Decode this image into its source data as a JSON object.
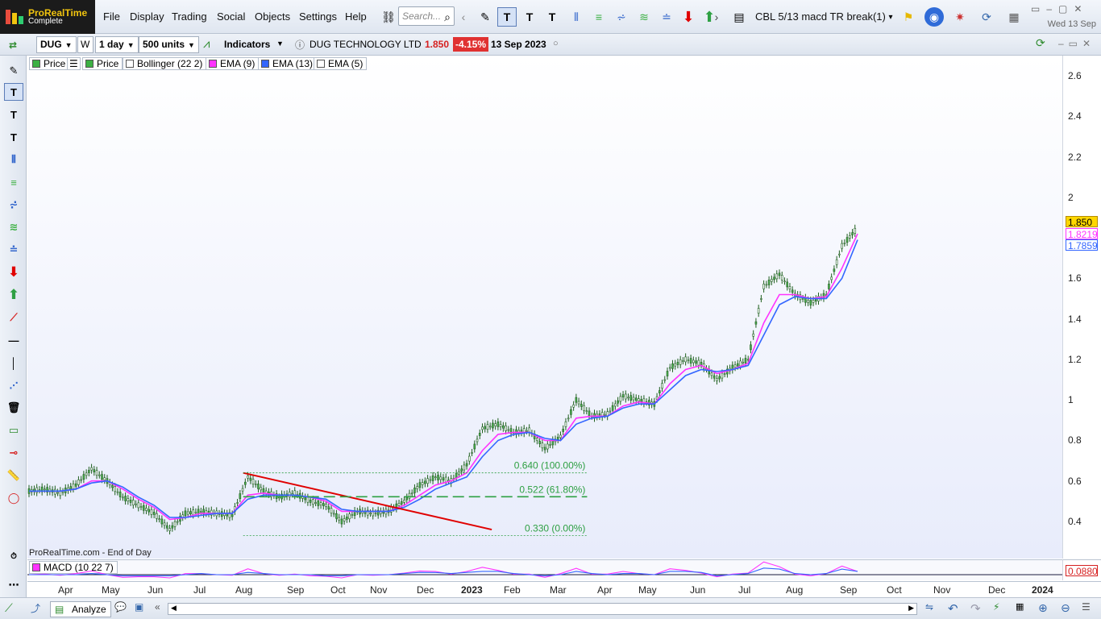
{
  "app": {
    "brand": "ProRealTime",
    "edition": "Complete",
    "date": "Wed 13 Sep"
  },
  "menu": [
    "File",
    "Display",
    "Trading",
    "Social",
    "Objects",
    "Settings",
    "Help"
  ],
  "search": {
    "placeholder": "Search..."
  },
  "screener": {
    "label": "CBL 5/13 macd TR break(1)"
  },
  "toolbar": {
    "ticker": "DUG",
    "w_label": "W",
    "period": "1 day",
    "units": "500 units",
    "indicators": "Indicators",
    "instrument": "DUG TECHNOLOGY LTD",
    "last_price": "1.850",
    "change": "-4.15%",
    "date": "13 Sep 2023"
  },
  "legend": [
    {
      "label": "Price",
      "color": "#3cb043"
    },
    {
      "label": "Price",
      "color": "#3cb043"
    },
    {
      "label": "Bollinger (22 2)",
      "color": "#ffffff"
    },
    {
      "label": "EMA (9)",
      "color": "#ff33ff"
    },
    {
      "label": "EMA (13)",
      "color": "#3366ff"
    },
    {
      "label": "EMA (5)",
      "color": "#ffffff"
    }
  ],
  "chart_data": {
    "type": "line",
    "y_axis_ticks": [
      "2.6",
      "2.4",
      "2.2",
      "2",
      "1.8",
      "1.6",
      "1.4",
      "1.2",
      "1",
      "0.8",
      "0.6",
      "0.4"
    ],
    "ylim": [
      0.3,
      2.7
    ],
    "x_axis_ticks": [
      "Apr",
      "May",
      "Jun",
      "Jul",
      "Aug",
      "Sep",
      "Oct",
      "Nov",
      "Dec",
      "2023",
      "Feb",
      "Mar",
      "Apr",
      "May",
      "Jun",
      "Jul",
      "Aug",
      "Sep",
      "Oct",
      "Nov",
      "Dec",
      "2024"
    ],
    "series": [
      {
        "name": "Price",
        "color": "#2e8b2e",
        "values": [
          0.55,
          0.56,
          0.54,
          0.58,
          0.66,
          0.6,
          0.52,
          0.48,
          0.44,
          0.36,
          0.44,
          0.45,
          0.44,
          0.43,
          0.62,
          0.55,
          0.52,
          0.54,
          0.5,
          0.48,
          0.4,
          0.45,
          0.44,
          0.45,
          0.5,
          0.58,
          0.62,
          0.6,
          0.68,
          0.86,
          0.88,
          0.84,
          0.85,
          0.76,
          0.82,
          1.0,
          0.92,
          0.93,
          1.02,
          1.0,
          0.98,
          1.16,
          1.2,
          1.18,
          1.1,
          1.16,
          1.2,
          1.56,
          1.62,
          1.52,
          1.48,
          1.52,
          1.76,
          1.85
        ]
      },
      {
        "name": "EMA (9)",
        "color": "#ff33ff",
        "values": [
          0.55,
          0.55,
          0.55,
          0.56,
          0.6,
          0.6,
          0.56,
          0.51,
          0.47,
          0.41,
          0.42,
          0.44,
          0.44,
          0.44,
          0.53,
          0.54,
          0.53,
          0.53,
          0.52,
          0.5,
          0.45,
          0.45,
          0.45,
          0.45,
          0.48,
          0.53,
          0.58,
          0.6,
          0.64,
          0.75,
          0.83,
          0.84,
          0.84,
          0.8,
          0.8,
          0.91,
          0.92,
          0.92,
          0.97,
          0.99,
          0.98,
          1.08,
          1.15,
          1.17,
          1.13,
          1.15,
          1.18,
          1.38,
          1.52,
          1.52,
          1.5,
          1.51,
          1.65,
          1.82
        ]
      },
      {
        "name": "EMA (13)",
        "color": "#3366ff",
        "values": [
          0.55,
          0.55,
          0.55,
          0.56,
          0.59,
          0.6,
          0.57,
          0.52,
          0.48,
          0.42,
          0.42,
          0.43,
          0.44,
          0.44,
          0.51,
          0.53,
          0.53,
          0.53,
          0.52,
          0.51,
          0.46,
          0.45,
          0.45,
          0.45,
          0.47,
          0.51,
          0.56,
          0.59,
          0.62,
          0.72,
          0.8,
          0.83,
          0.84,
          0.81,
          0.8,
          0.88,
          0.91,
          0.92,
          0.96,
          0.98,
          0.98,
          1.05,
          1.12,
          1.15,
          1.14,
          1.15,
          1.17,
          1.32,
          1.47,
          1.51,
          1.5,
          1.5,
          1.6,
          1.79
        ]
      }
    ],
    "price_tags": [
      {
        "value": "1.850",
        "bg": "#ffd700",
        "fg": "#000000",
        "border": "#b58b00"
      },
      {
        "value": "1.8219",
        "bg": "#ffffff",
        "fg": "#ff33ff",
        "border": "#ff33ff"
      },
      {
        "value": "1.7859",
        "bg": "#ffffff",
        "fg": "#3366ff",
        "border": "#3366ff"
      }
    ],
    "trendline": {
      "color": "#e00000",
      "from": 0.64,
      "to": 0.36
    },
    "fibonacci": [
      {
        "label": "0.640 (100.00%)",
        "value": 0.64
      },
      {
        "label": "0.522 (61.80%)",
        "value": 0.522
      },
      {
        "label": "0.330 (0.00%)",
        "value": 0.33
      }
    ]
  },
  "footer_note": "ProRealTime.com - End of Day",
  "macd": {
    "label": "MACD (10 22 7)",
    "value": "0.0880"
  },
  "bottom": {
    "analyze": "Analyze"
  }
}
